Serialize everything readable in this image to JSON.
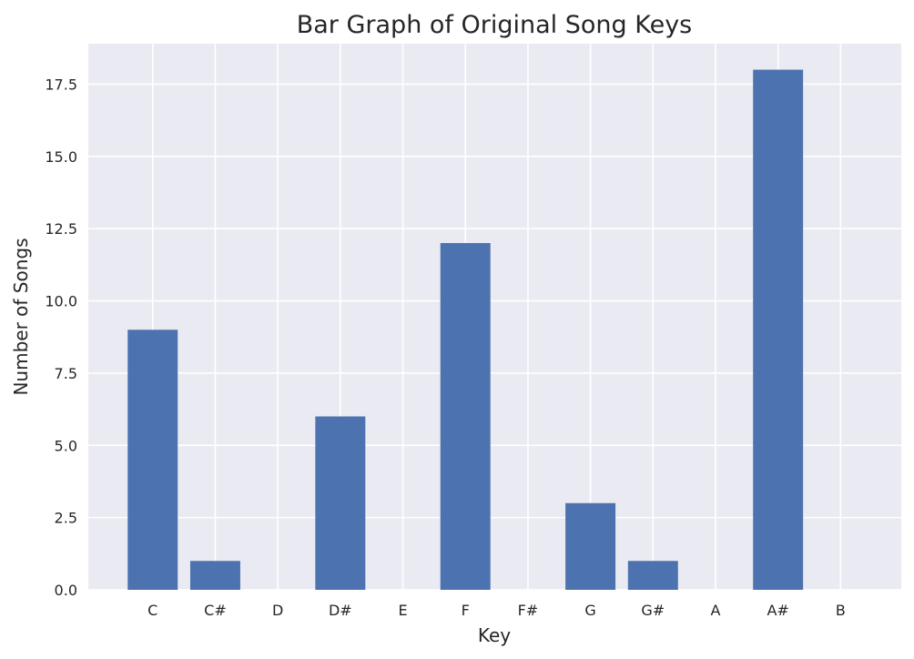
{
  "chart_data": {
    "type": "bar",
    "title": "Bar Graph of Original Song Keys",
    "xlabel": "Key",
    "ylabel": "Number of Songs",
    "categories": [
      "C",
      "C#",
      "D",
      "D#",
      "E",
      "F",
      "F#",
      "G",
      "G#",
      "A",
      "A#",
      "B"
    ],
    "values": [
      9,
      1,
      0,
      6,
      0,
      12,
      0,
      3,
      1,
      0,
      18,
      0
    ],
    "ylim": [
      0,
      18.9
    ],
    "yticks": [
      "0.0",
      "2.5",
      "5.0",
      "7.5",
      "10.0",
      "12.5",
      "15.0",
      "17.5"
    ],
    "grid": true,
    "style": {
      "background": "#eaeaf2",
      "grid_color": "#ffffff",
      "bar_color": "#4c72b0"
    }
  }
}
